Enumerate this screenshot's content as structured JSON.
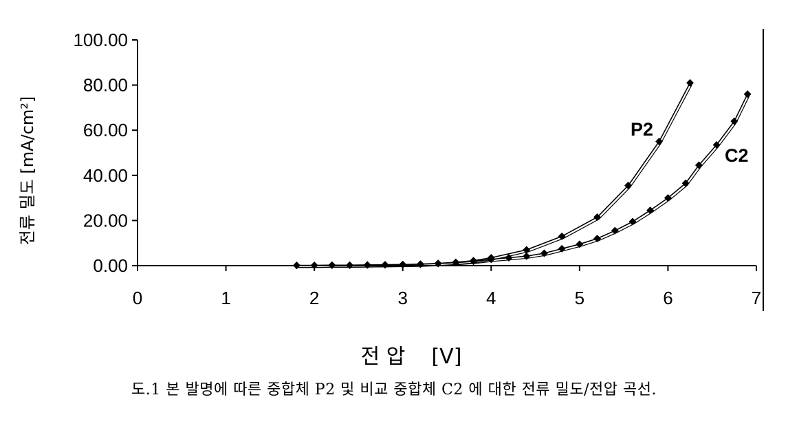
{
  "chart_data": {
    "type": "line",
    "xlabel": "전 압    [V]",
    "ylabel": "전류 밀도    [mA/cm²]",
    "xlim": [
      0,
      7
    ],
    "ylim": [
      0,
      100
    ],
    "xticks": [
      "0",
      "1",
      "2",
      "3",
      "4",
      "5",
      "6",
      "7"
    ],
    "yticks": [
      "0.00",
      "20.00",
      "40.00",
      "60.00",
      "80.00",
      "100.00"
    ],
    "grid": false,
    "series": [
      {
        "name": "P2",
        "x": [
          1.8,
          2.0,
          2.2,
          2.4,
          2.6,
          2.8,
          3.0,
          3.2,
          3.4,
          3.6,
          3.8,
          4.0,
          4.4,
          4.8,
          5.2,
          5.55,
          5.9,
          6.25
        ],
        "y": [
          0.1,
          0.1,
          0.2,
          0.2,
          0.3,
          0.4,
          0.5,
          0.7,
          1.0,
          1.5,
          2.2,
          3.5,
          7.0,
          13.0,
          21.5,
          35.5,
          55.0,
          81.0
        ]
      },
      {
        "name": "C2",
        "x": [
          1.8,
          2.0,
          2.2,
          2.4,
          2.6,
          2.8,
          3.0,
          3.2,
          3.4,
          3.6,
          3.8,
          4.0,
          4.2,
          4.4,
          4.6,
          4.8,
          5.0,
          5.2,
          5.4,
          5.6,
          5.8,
          6.0,
          6.2,
          6.35,
          6.55,
          6.75,
          6.9
        ],
        "y": [
          0.1,
          0.1,
          0.2,
          0.2,
          0.3,
          0.4,
          0.5,
          0.6,
          0.9,
          1.3,
          1.9,
          2.8,
          3.5,
          4.2,
          5.5,
          7.5,
          9.5,
          12.0,
          15.5,
          19.5,
          24.5,
          30.0,
          36.5,
          44.5,
          53.5,
          64.0,
          76.0
        ]
      }
    ]
  },
  "caption": "도.1 본 발명에 따른 중합체 P2 및 비교 중합체 C2 에 대한 전류 밀도/전압 곡선."
}
